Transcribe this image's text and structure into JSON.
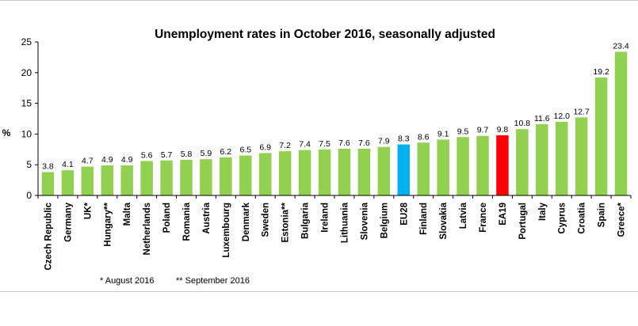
{
  "chart_data": {
    "type": "bar",
    "title": "Unemployment rates in October 2016, seasonally adjusted",
    "ylabel": "%",
    "xlabel": "",
    "ylim": [
      0,
      25
    ],
    "yticks": [
      0,
      5,
      10,
      15,
      20,
      25
    ],
    "grid": false,
    "categories": [
      "Czech Republic",
      "Germany",
      "UK*",
      "Hungary**",
      "Malta",
      "Netherlands",
      "Poland",
      "Romania",
      "Austria",
      "Luxembourg",
      "Denmark",
      "Sweden",
      "Estonia**",
      "Bulgaria",
      "Ireland",
      "Lithuania",
      "Slovenia",
      "Belgium",
      "EU28",
      "Finland",
      "Slovakia",
      "Latvia",
      "France",
      "EA19",
      "Portugal",
      "Italy",
      "Cyprus",
      "Croatia",
      "Spain",
      "Greece*"
    ],
    "values": [
      3.8,
      4.1,
      4.7,
      4.9,
      4.9,
      5.6,
      5.7,
      5.8,
      5.9,
      6.2,
      6.5,
      6.9,
      7.2,
      7.4,
      7.5,
      7.6,
      7.6,
      7.9,
      8.3,
      8.6,
      9.1,
      9.5,
      9.7,
      9.8,
      10.8,
      11.6,
      12.0,
      12.7,
      19.2,
      23.4
    ],
    "value_labels": [
      "3.8",
      "4.1",
      "4.7",
      "4.9",
      "4.9",
      "5.6",
      "5.7",
      "5.8",
      "5.9",
      "6.2",
      "6.5",
      "6.9",
      "7.2",
      "7.4",
      "7.5",
      "7.6",
      "7.6",
      "7.9",
      "8.3",
      "8.6",
      "9.1",
      "9.5",
      "9.7",
      "9.8",
      "10.8",
      "11.6",
      "12.0",
      "12.7",
      "19.2",
      "23.4"
    ],
    "colors": {
      "default": "#92d050",
      "EU28": "#00b0f0",
      "EA19": "#ff0000"
    },
    "footnotes": [
      "* August 2016",
      "** September 2016"
    ]
  }
}
